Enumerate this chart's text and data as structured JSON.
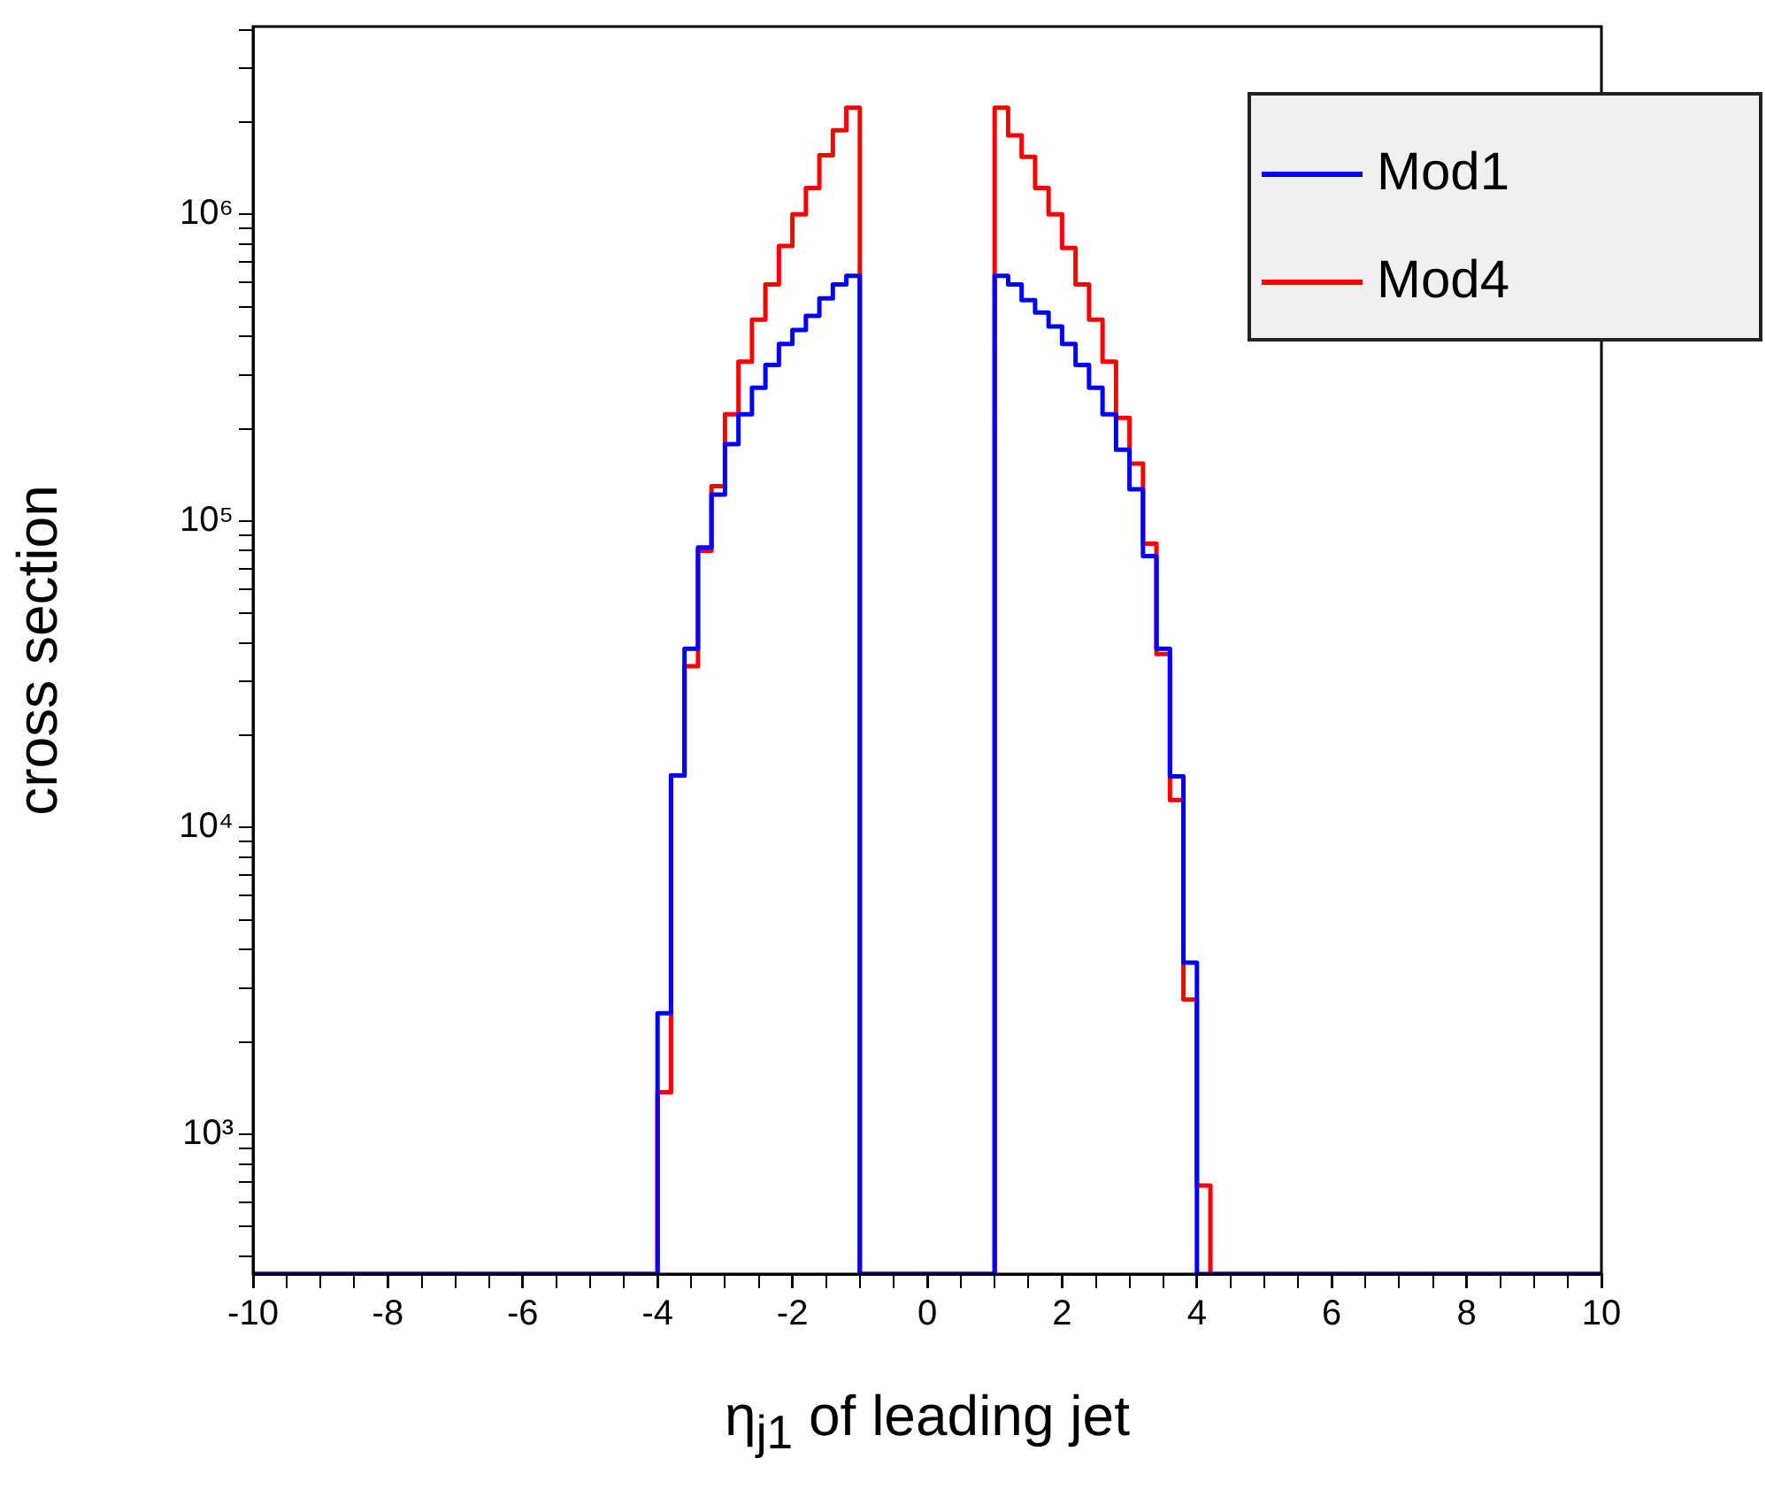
{
  "chart_data": {
    "type": "histogram",
    "xlabel": "η$_{j1}$ of leading jet",
    "ylabel": "cross section",
    "bins": [
      -10,
      -9.8,
      -9.6,
      -9.4,
      -9.2,
      -9,
      -8.8,
      -8.6,
      -8.4,
      -8.2,
      -8,
      -7.8,
      -7.6,
      -7.4,
      -7.2,
      -7,
      -6.8,
      -6.6,
      -6.4,
      -6.2,
      -6,
      -5.8,
      -5.6,
      -5.4,
      -5.2,
      -5,
      -4.8,
      -4.6,
      -4.4,
      -4.2,
      -4,
      -3.8,
      -3.6,
      -3.4,
      -3.2,
      -3,
      -2.8,
      -2.6,
      -2.4,
      -2.2,
      -2,
      -1.8,
      -1.6,
      -1.4,
      -1.2,
      -1,
      -0.8,
      -0.6,
      -0.4,
      -0.2,
      0,
      0.2,
      0.4,
      0.6,
      0.8,
      1,
      1.2,
      1.4,
      1.6,
      1.8,
      2,
      2.2,
      2.4,
      2.6,
      2.8,
      3,
      3.2,
      3.4,
      3.6,
      3.8,
      4,
      4.2,
      4.4,
      4.6,
      4.8,
      5,
      5.2,
      5.4,
      5.6,
      5.8,
      6,
      6.2,
      6.4,
      6.6,
      6.8,
      7,
      7.2,
      7.4,
      7.6,
      7.8,
      8,
      8.2,
      8.4,
      8.6,
      8.8,
      9,
      9.2,
      9.4,
      9.6,
      9.8,
      10
    ],
    "series": [
      {
        "name": "Mod1",
        "color": "#0000ff",
        "values": [
          null,
          null,
          null,
          null,
          null,
          null,
          null,
          null,
          null,
          null,
          null,
          null,
          null,
          null,
          null,
          null,
          null,
          null,
          null,
          null,
          null,
          null,
          null,
          null,
          null,
          null,
          null,
          null,
          null,
          null,
          2480,
          14800,
          38300,
          82000,
          122000,
          178000,
          223000,
          272000,
          323000,
          378000,
          420000,
          467000,
          532000,
          591000,
          631000,
          null,
          null,
          null,
          null,
          null,
          null,
          null,
          null,
          null,
          null,
          631000,
          591000,
          525000,
          479000,
          431000,
          378000,
          323000,
          272000,
          223000,
          171000,
          127000,
          76900,
          38300,
          14700,
          3630,
          null,
          null,
          null,
          null,
          null,
          null,
          null,
          null,
          null,
          null,
          null,
          null,
          null,
          null,
          null,
          null,
          null,
          null,
          null,
          null,
          null,
          null,
          null,
          null,
          null,
          null,
          null,
          null,
          null,
          null
        ]
      },
      {
        "name": "Mod4",
        "color": "#ff0000",
        "values": [
          null,
          null,
          null,
          null,
          null,
          null,
          null,
          null,
          null,
          null,
          null,
          null,
          null,
          null,
          null,
          null,
          null,
          null,
          null,
          null,
          null,
          null,
          null,
          null,
          null,
          null,
          null,
          null,
          null,
          null,
          1370,
          14800,
          33600,
          80000,
          130000,
          223000,
          331000,
          454000,
          591000,
          789000,
          1000000,
          1220000,
          1560000,
          1880000,
          2230000,
          null,
          null,
          null,
          null,
          null,
          null,
          null,
          null,
          null,
          null,
          2230000,
          1810000,
          1540000,
          1220000,
          1000000,
          778000,
          591000,
          454000,
          331000,
          217000,
          154000,
          84300,
          36800,
          12300,
          2750,
          680,
          null,
          null,
          null,
          null,
          null,
          null,
          null,
          null,
          null,
          null,
          null,
          null,
          null,
          null,
          null,
          null,
          null,
          null,
          null,
          null,
          null,
          null,
          null,
          null,
          null,
          null,
          null,
          null,
          null
        ]
      }
    ],
    "xlim": [
      -10,
      10
    ],
    "xticks": [
      -10,
      {
        "value": -9.5,
        "label": null
      },
      -8,
      {
        "value": -8.5,
        "label": null
      },
      {
        "value": -9,
        "label": null
      },
      {
        "value": -7.5,
        "label": null
      },
      -6,
      {
        "value": -7,
        "label": null
      },
      {
        "value": -6.5,
        "label": null
      },
      {
        "value": -5.5,
        "label": null
      },
      -4,
      {
        "value": -5,
        "label": null
      },
      {
        "value": -4.5,
        "label": null
      },
      {
        "value": -3.5,
        "label": null
      },
      -2,
      {
        "value": -3,
        "label": null
      },
      {
        "value": -2.5,
        "label": null
      },
      {
        "value": -1.5,
        "label": null
      },
      0,
      {
        "value": -1,
        "label": null
      },
      {
        "value": -0.5,
        "label": null
      },
      {
        "value": 0.5,
        "label": null
      },
      2,
      {
        "value": 1,
        "label": null
      },
      {
        "value": 1.5,
        "label": null
      },
      {
        "value": 2.5,
        "label": null
      },
      4,
      {
        "value": 3,
        "label": null
      },
      {
        "value": 3.5,
        "label": null
      },
      {
        "value": 4.5,
        "label": null
      },
      6,
      {
        "value": 5,
        "label": null
      },
      {
        "value": 5.5,
        "label": null
      },
      {
        "value": 6.5,
        "label": null
      },
      8,
      {
        "value": 7,
        "label": null
      },
      {
        "value": 7.5,
        "label": null
      },
      {
        "value": 8.5,
        "label": null
      },
      10,
      {
        "value": 9,
        "label": null
      },
      {
        "value": 9.5,
        "label": null
      }
    ],
    "ylim": [
      350,
      4100000
    ],
    "yticks": [
      {
        "value": 400,
        "label": null
      },
      {
        "value": 500,
        "label": null
      },
      {
        "value": 600,
        "label": null
      },
      {
        "value": 700,
        "label": null
      },
      {
        "value": 800,
        "label": null
      },
      {
        "value": 900,
        "label": null
      },
      {
        "value": 1000,
        "label": "10³"
      },
      {
        "value": 2000,
        "label": null
      },
      {
        "value": 3000,
        "label": null
      },
      {
        "value": 4000,
        "label": null
      },
      {
        "value": 5000,
        "label": null
      },
      {
        "value": 6000,
        "label": null
      },
      {
        "value": 7000,
        "label": null
      },
      {
        "value": 8000,
        "label": null
      },
      {
        "value": 9000,
        "label": null
      },
      {
        "value": 10000,
        "label": "10⁴"
      },
      {
        "value": 20000,
        "label": null
      },
      {
        "value": 30000,
        "label": null
      },
      {
        "value": 40000,
        "label": null
      },
      {
        "value": 50000,
        "label": null
      },
      {
        "value": 60000,
        "label": null
      },
      {
        "value": 70000,
        "label": null
      },
      {
        "value": 80000,
        "label": null
      },
      {
        "value": 90000,
        "label": null
      },
      {
        "value": 100000,
        "label": "10⁵"
      },
      {
        "value": 200000,
        "label": null
      },
      {
        "value": 300000,
        "label": null
      },
      {
        "value": 400000,
        "label": null
      },
      {
        "value": 500000,
        "label": null
      },
      {
        "value": 600000,
        "label": null
      },
      {
        "value": 700000,
        "label": null
      },
      {
        "value": 800000,
        "label": null
      },
      {
        "value": 900000,
        "label": null
      },
      {
        "value": 1000000,
        "label": "10⁶"
      },
      {
        "value": 2000000,
        "label": null
      },
      {
        "value": 3000000,
        "label": null
      },
      {
        "value": 4000000,
        "label": null
      }
    ],
    "log": "y",
    "grid": false,
    "legend": "top right"
  }
}
